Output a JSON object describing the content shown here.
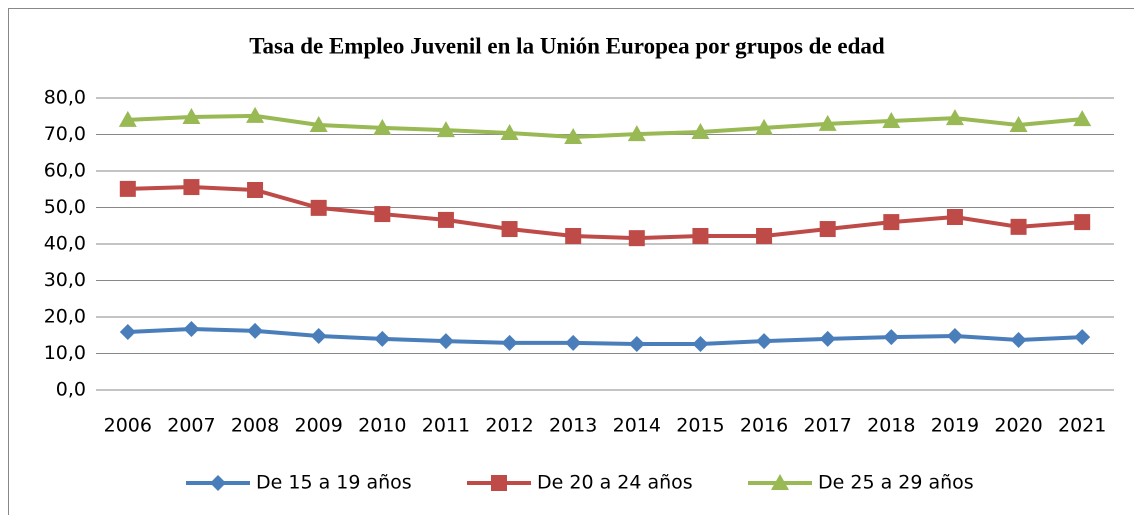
{
  "chart_data": {
    "type": "line",
    "title": "Tasa de Empleo Juvenil en la Unión Europea por grupos de edad",
    "categories": [
      "2006",
      "2007",
      "2008",
      "2009",
      "2010",
      "2011",
      "2012",
      "2013",
      "2014",
      "2015",
      "2016",
      "2017",
      "2018",
      "2019",
      "2020",
      "2021"
    ],
    "series": [
      {
        "name": "De 15 a 19 años",
        "color": "#4a7ebb",
        "marker": "diamond",
        "values": [
          15.9,
          16.7,
          16.2,
          14.8,
          14.0,
          13.4,
          12.9,
          12.9,
          12.6,
          12.6,
          13.4,
          14.0,
          14.5,
          14.8,
          13.7,
          14.5
        ]
      },
      {
        "name": "De 20 a 24 años",
        "color": "#be4b48",
        "marker": "square",
        "values": [
          55.1,
          55.6,
          54.8,
          49.9,
          48.2,
          46.6,
          44.1,
          42.2,
          41.6,
          42.2,
          42.2,
          44.1,
          46.0,
          47.4,
          44.7,
          46.0
        ]
      },
      {
        "name": "De 25 a 29 años",
        "color": "#98b954",
        "marker": "triangle",
        "values": [
          74.0,
          74.8,
          75.1,
          72.6,
          71.8,
          71.2,
          70.4,
          69.3,
          70.1,
          70.7,
          71.8,
          72.9,
          73.7,
          74.5,
          72.6,
          74.2
        ]
      }
    ],
    "ylim": [
      0,
      80
    ],
    "yticks": [
      {
        "value": 0,
        "label": "0,0"
      },
      {
        "value": 10,
        "label": "10,0"
      },
      {
        "value": 20,
        "label": "20,0"
      },
      {
        "value": 30,
        "label": "30,0"
      },
      {
        "value": 40,
        "label": "40,0"
      },
      {
        "value": 50,
        "label": "50,0"
      },
      {
        "value": 60,
        "label": "60,0"
      },
      {
        "value": 70,
        "label": "70,0"
      },
      {
        "value": 80,
        "label": "80,0"
      }
    ],
    "grid": true,
    "legend": "bottom"
  }
}
